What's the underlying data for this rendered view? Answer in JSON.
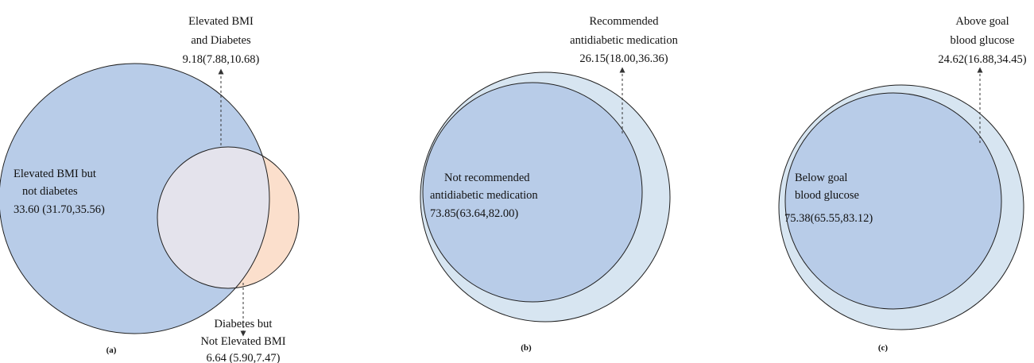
{
  "colors": {
    "large_circle": "#b8cce8",
    "small_circle": "#fbdfcc",
    "overlap": "#e4e3ec",
    "outer_light": "#d7e5f1",
    "outline": "#1f1f1f",
    "arrow": "#333333"
  },
  "panel_a": {
    "label": "(a)",
    "overlap": {
      "line1": "Elevated BMI",
      "line2": "and Diabetes",
      "value": "9.18(7.88,10.68)"
    },
    "left_only": {
      "line1": "Elevated BMI but",
      "line2": "not diabetes",
      "value": "33.60 (31.70,35.56)"
    },
    "right_only": {
      "line1": "Diabetes but",
      "line2": "Not Elevated BMI",
      "value": "6.64 (5.90,7.47)"
    }
  },
  "panel_b": {
    "label": "(b)",
    "crescent": {
      "line1": "Recommended",
      "line2": "antidiabetic medication",
      "value": "26.15(18.00,36.36)"
    },
    "inner": {
      "line1": "Not recommended",
      "line2": "antidiabetic medication",
      "value": "73.85(63.64,82.00)"
    }
  },
  "panel_c": {
    "label": "(c)",
    "crescent": {
      "line1": "Above goal",
      "line2": "blood glucose",
      "value": "24.62(16.88,34.45)"
    },
    "inner": {
      "line1": "Below goal",
      "line2": "blood glucose",
      "value": "75.38(65.55,83.12)"
    }
  }
}
